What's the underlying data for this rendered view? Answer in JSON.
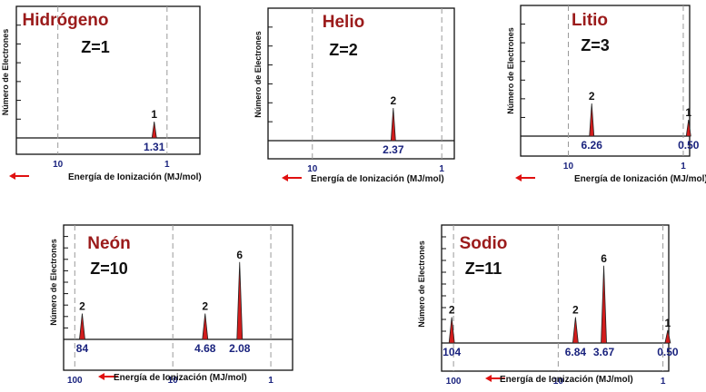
{
  "colors": {
    "title": "#9b1b1b",
    "peak": "#d21c1c",
    "ie_label": "#1a237e",
    "arrow": "#e01010"
  },
  "chart_data": [
    {
      "type": "bar",
      "title": "Hidrógeno",
      "subtitle": "Z=1",
      "ylabel": "Número de Electrones",
      "xlabel": "Energía de Ionización (MJ/mol)",
      "xscale": "log",
      "xreversed": true,
      "xlim": [
        24,
        0.5
      ],
      "xticks": [
        {
          "v": 10,
          "t": "10"
        },
        {
          "v": 1,
          "t": "1"
        }
      ],
      "ylim": [
        0,
        6.5
      ],
      "yticks": 7,
      "peaks": [
        {
          "energy": 1.31,
          "count": 1,
          "count_label": "1",
          "energy_label": "1.31"
        }
      ]
    },
    {
      "type": "bar",
      "title": "Helio",
      "subtitle": "Z=2",
      "ylabel": "Número de Electrones",
      "xlabel": "Energía de Ionización (MJ/mol)",
      "xscale": "log",
      "xreversed": true,
      "xlim": [
        22,
        0.8
      ],
      "xticks": [
        {
          "v": 10,
          "t": "10"
        },
        {
          "v": 1,
          "t": "1"
        }
      ],
      "ylim": [
        0,
        6.5
      ],
      "yticks": 7,
      "peaks": [
        {
          "energy": 2.37,
          "count": 2,
          "count_label": "2",
          "energy_label": "2.37"
        }
      ]
    },
    {
      "type": "bar",
      "title": "Litio",
      "subtitle": "Z=3",
      "ylabel": "Número de Electrones",
      "xlabel": "Energía de Ionización (MJ/mol)",
      "xscale": "log",
      "xreversed": true,
      "xlim": [
        26,
        0.88
      ],
      "xticks": [
        {
          "v": 10,
          "t": "10"
        },
        {
          "v": 1,
          "t": "1"
        }
      ],
      "ylim": [
        0,
        6.5
      ],
      "yticks": 7,
      "peaks": [
        {
          "energy": 6.26,
          "count": 2,
          "count_label": "2",
          "energy_label": "6.26"
        },
        {
          "energy": 0.5,
          "count": 1,
          "count_label": "1",
          "energy_label": "0.50",
          "xpos": 0.9
        }
      ]
    },
    {
      "type": "bar",
      "title": "Neón",
      "subtitle": "Z=10",
      "ylabel": "Número de Electrones",
      "xlabel": "Energía de Ionización (MJ/mol)",
      "xscale": "log",
      "xreversed": true,
      "xlim": [
        130,
        0.6
      ],
      "xticks": [
        {
          "v": 100,
          "t": "100"
        },
        {
          "v": 10,
          "t": "10"
        },
        {
          "v": 1,
          "t": "1"
        }
      ],
      "ylim": [
        0,
        7.2
      ],
      "yticks": 10,
      "peaks": [
        {
          "energy": 84,
          "count": 2,
          "count_label": "2",
          "energy_label": "84"
        },
        {
          "energy": 4.68,
          "count": 2,
          "count_label": "2",
          "energy_label": "4.68"
        },
        {
          "energy": 2.08,
          "count": 6,
          "count_label": "6",
          "energy_label": "2.08"
        }
      ]
    },
    {
      "type": "bar",
      "title": "Sodio",
      "subtitle": "Z=11",
      "ylabel": "Número de Electrones",
      "xlabel": "Energía de Ionización (MJ/mol)",
      "xscale": "log",
      "xreversed": true,
      "xlim": [
        130,
        0.88
      ],
      "xticks": [
        {
          "v": 100,
          "t": "100"
        },
        {
          "v": 10,
          "t": "10"
        },
        {
          "v": 1,
          "t": "1"
        }
      ],
      "ylim": [
        0,
        7.2
      ],
      "yticks": 10,
      "peaks": [
        {
          "energy": 104,
          "count": 2,
          "count_label": "2",
          "energy_label": "104"
        },
        {
          "energy": 6.84,
          "count": 2,
          "count_label": "2",
          "energy_label": "6.84"
        },
        {
          "energy": 3.67,
          "count": 6,
          "count_label": "6",
          "energy_label": "3.67"
        },
        {
          "energy": 0.5,
          "count": 1,
          "count_label": "1",
          "energy_label": "0.50",
          "xpos": 0.9
        }
      ]
    }
  ]
}
